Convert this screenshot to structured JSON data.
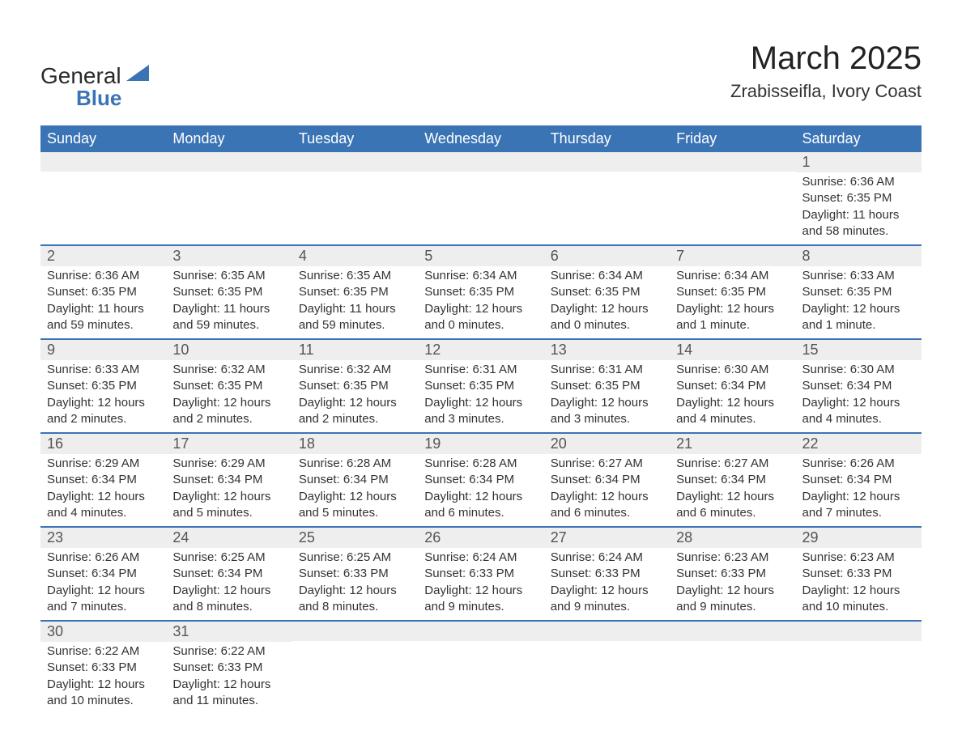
{
  "logo": {
    "text1": "General",
    "text2": "Blue"
  },
  "title": "March 2025",
  "location": "Zrabisseifla, Ivory Coast",
  "colors": {
    "header_bg": "#3b74b5",
    "header_text": "#ffffff",
    "daynum_bg": "#eeeeee",
    "border": "#3b74b5",
    "body_text": "#333333",
    "logo_accent": "#3b74b5"
  },
  "day_headers": [
    "Sunday",
    "Monday",
    "Tuesday",
    "Wednesday",
    "Thursday",
    "Friday",
    "Saturday"
  ],
  "weeks": [
    [
      {
        "n": "",
        "sr": "",
        "ss": "",
        "dl": ""
      },
      {
        "n": "",
        "sr": "",
        "ss": "",
        "dl": ""
      },
      {
        "n": "",
        "sr": "",
        "ss": "",
        "dl": ""
      },
      {
        "n": "",
        "sr": "",
        "ss": "",
        "dl": ""
      },
      {
        "n": "",
        "sr": "",
        "ss": "",
        "dl": ""
      },
      {
        "n": "",
        "sr": "",
        "ss": "",
        "dl": ""
      },
      {
        "n": "1",
        "sr": "Sunrise: 6:36 AM",
        "ss": "Sunset: 6:35 PM",
        "dl": "Daylight: 11 hours and 58 minutes."
      }
    ],
    [
      {
        "n": "2",
        "sr": "Sunrise: 6:36 AM",
        "ss": "Sunset: 6:35 PM",
        "dl": "Daylight: 11 hours and 59 minutes."
      },
      {
        "n": "3",
        "sr": "Sunrise: 6:35 AM",
        "ss": "Sunset: 6:35 PM",
        "dl": "Daylight: 11 hours and 59 minutes."
      },
      {
        "n": "4",
        "sr": "Sunrise: 6:35 AM",
        "ss": "Sunset: 6:35 PM",
        "dl": "Daylight: 11 hours and 59 minutes."
      },
      {
        "n": "5",
        "sr": "Sunrise: 6:34 AM",
        "ss": "Sunset: 6:35 PM",
        "dl": "Daylight: 12 hours and 0 minutes."
      },
      {
        "n": "6",
        "sr": "Sunrise: 6:34 AM",
        "ss": "Sunset: 6:35 PM",
        "dl": "Daylight: 12 hours and 0 minutes."
      },
      {
        "n": "7",
        "sr": "Sunrise: 6:34 AM",
        "ss": "Sunset: 6:35 PM",
        "dl": "Daylight: 12 hours and 1 minute."
      },
      {
        "n": "8",
        "sr": "Sunrise: 6:33 AM",
        "ss": "Sunset: 6:35 PM",
        "dl": "Daylight: 12 hours and 1 minute."
      }
    ],
    [
      {
        "n": "9",
        "sr": "Sunrise: 6:33 AM",
        "ss": "Sunset: 6:35 PM",
        "dl": "Daylight: 12 hours and 2 minutes."
      },
      {
        "n": "10",
        "sr": "Sunrise: 6:32 AM",
        "ss": "Sunset: 6:35 PM",
        "dl": "Daylight: 12 hours and 2 minutes."
      },
      {
        "n": "11",
        "sr": "Sunrise: 6:32 AM",
        "ss": "Sunset: 6:35 PM",
        "dl": "Daylight: 12 hours and 2 minutes."
      },
      {
        "n": "12",
        "sr": "Sunrise: 6:31 AM",
        "ss": "Sunset: 6:35 PM",
        "dl": "Daylight: 12 hours and 3 minutes."
      },
      {
        "n": "13",
        "sr": "Sunrise: 6:31 AM",
        "ss": "Sunset: 6:35 PM",
        "dl": "Daylight: 12 hours and 3 minutes."
      },
      {
        "n": "14",
        "sr": "Sunrise: 6:30 AM",
        "ss": "Sunset: 6:34 PM",
        "dl": "Daylight: 12 hours and 4 minutes."
      },
      {
        "n": "15",
        "sr": "Sunrise: 6:30 AM",
        "ss": "Sunset: 6:34 PM",
        "dl": "Daylight: 12 hours and 4 minutes."
      }
    ],
    [
      {
        "n": "16",
        "sr": "Sunrise: 6:29 AM",
        "ss": "Sunset: 6:34 PM",
        "dl": "Daylight: 12 hours and 4 minutes."
      },
      {
        "n": "17",
        "sr": "Sunrise: 6:29 AM",
        "ss": "Sunset: 6:34 PM",
        "dl": "Daylight: 12 hours and 5 minutes."
      },
      {
        "n": "18",
        "sr": "Sunrise: 6:28 AM",
        "ss": "Sunset: 6:34 PM",
        "dl": "Daylight: 12 hours and 5 minutes."
      },
      {
        "n": "19",
        "sr": "Sunrise: 6:28 AM",
        "ss": "Sunset: 6:34 PM",
        "dl": "Daylight: 12 hours and 6 minutes."
      },
      {
        "n": "20",
        "sr": "Sunrise: 6:27 AM",
        "ss": "Sunset: 6:34 PM",
        "dl": "Daylight: 12 hours and 6 minutes."
      },
      {
        "n": "21",
        "sr": "Sunrise: 6:27 AM",
        "ss": "Sunset: 6:34 PM",
        "dl": "Daylight: 12 hours and 6 minutes."
      },
      {
        "n": "22",
        "sr": "Sunrise: 6:26 AM",
        "ss": "Sunset: 6:34 PM",
        "dl": "Daylight: 12 hours and 7 minutes."
      }
    ],
    [
      {
        "n": "23",
        "sr": "Sunrise: 6:26 AM",
        "ss": "Sunset: 6:34 PM",
        "dl": "Daylight: 12 hours and 7 minutes."
      },
      {
        "n": "24",
        "sr": "Sunrise: 6:25 AM",
        "ss": "Sunset: 6:34 PM",
        "dl": "Daylight: 12 hours and 8 minutes."
      },
      {
        "n": "25",
        "sr": "Sunrise: 6:25 AM",
        "ss": "Sunset: 6:33 PM",
        "dl": "Daylight: 12 hours and 8 minutes."
      },
      {
        "n": "26",
        "sr": "Sunrise: 6:24 AM",
        "ss": "Sunset: 6:33 PM",
        "dl": "Daylight: 12 hours and 9 minutes."
      },
      {
        "n": "27",
        "sr": "Sunrise: 6:24 AM",
        "ss": "Sunset: 6:33 PM",
        "dl": "Daylight: 12 hours and 9 minutes."
      },
      {
        "n": "28",
        "sr": "Sunrise: 6:23 AM",
        "ss": "Sunset: 6:33 PM",
        "dl": "Daylight: 12 hours and 9 minutes."
      },
      {
        "n": "29",
        "sr": "Sunrise: 6:23 AM",
        "ss": "Sunset: 6:33 PM",
        "dl": "Daylight: 12 hours and 10 minutes."
      }
    ],
    [
      {
        "n": "30",
        "sr": "Sunrise: 6:22 AM",
        "ss": "Sunset: 6:33 PM",
        "dl": "Daylight: 12 hours and 10 minutes."
      },
      {
        "n": "31",
        "sr": "Sunrise: 6:22 AM",
        "ss": "Sunset: 6:33 PM",
        "dl": "Daylight: 12 hours and 11 minutes."
      },
      {
        "n": "",
        "sr": "",
        "ss": "",
        "dl": ""
      },
      {
        "n": "",
        "sr": "",
        "ss": "",
        "dl": ""
      },
      {
        "n": "",
        "sr": "",
        "ss": "",
        "dl": ""
      },
      {
        "n": "",
        "sr": "",
        "ss": "",
        "dl": ""
      },
      {
        "n": "",
        "sr": "",
        "ss": "",
        "dl": ""
      }
    ]
  ]
}
